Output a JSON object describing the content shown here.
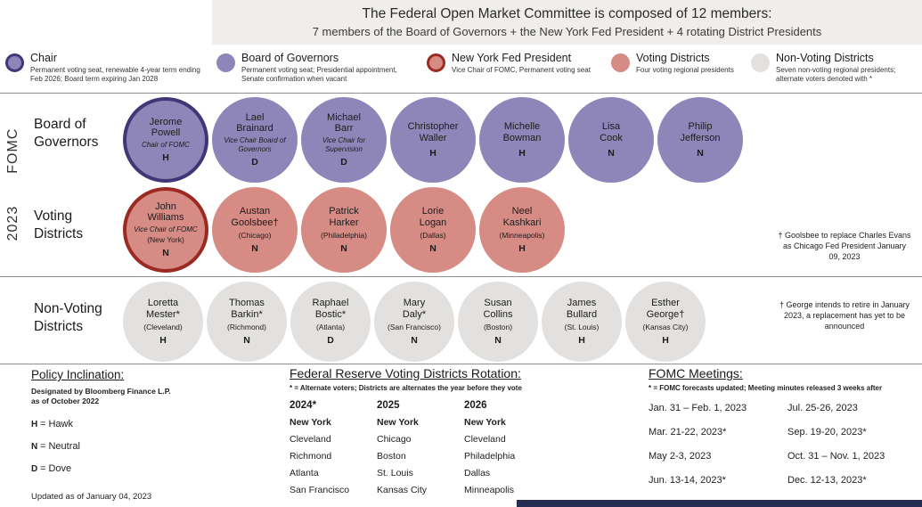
{
  "header": {
    "line1": "The Federal Open Market Committee is composed of 12 members:",
    "line2": "7 members of the Board of Governors + the New York Fed President + 4 rotating District Presidents"
  },
  "legend": [
    {
      "label": "Chair",
      "desc": "Permanent voting seat, renewable 4-year term ending Feb 2026; Board term expiring Jan 2028"
    },
    {
      "label": "Board of Governors",
      "desc": "Permanent voting seat; Presidential appointment, Senate confirmation when vacant"
    },
    {
      "label": "New York Fed President",
      "desc": "Vice Chair of FOMC, Permanent voting seat"
    },
    {
      "label": "Voting Districts",
      "desc": "Four voting regional presidents"
    },
    {
      "label": "Non-Voting Districts",
      "desc": "Seven non-voting regional presidents; alternate voters denoted with *"
    }
  ],
  "side_label": {
    "year": "2023",
    "text": "FOMC"
  },
  "rows": [
    {
      "label": "Board of Governors",
      "members": [
        {
          "name": "Jerome Powell",
          "role": "Chair of FOMC",
          "stance": "H",
          "type": "chair"
        },
        {
          "name": "Lael Brainard",
          "role": "Vice Chair Board of Governors",
          "stance": "D",
          "type": "governor"
        },
        {
          "name": "Michael Barr",
          "role": "Vice Chair for Supervision",
          "stance": "D",
          "type": "governor"
        },
        {
          "name": "Christopher Waller",
          "stance": "H",
          "type": "governor"
        },
        {
          "name": "Michelle Bowman",
          "stance": "H",
          "type": "governor"
        },
        {
          "name": "Lisa Cook",
          "stance": "N",
          "type": "governor"
        },
        {
          "name": "Philip Jefferson",
          "stance": "N",
          "type": "governor"
        }
      ]
    },
    {
      "label": "Voting Districts",
      "note": "† Goolsbee to replace Charles Evans as Chicago Fed President January 09, 2023",
      "members": [
        {
          "name": "John Williams",
          "role": "Vice Chair of FOMC",
          "district": "(New York)",
          "stance": "N",
          "type": "nyfed"
        },
        {
          "name": "Austan Goolsbee†",
          "district": "(Chicago)",
          "stance": "N",
          "type": "voting"
        },
        {
          "name": "Patrick Harker",
          "district": "(Philadelphia)",
          "stance": "N",
          "type": "voting"
        },
        {
          "name": "Lorie Logan",
          "district": "(Dallas)",
          "stance": "N",
          "type": "voting"
        },
        {
          "name": "Neel Kashkari",
          "district": "(Minneapolis)",
          "stance": "H",
          "type": "voting"
        }
      ]
    },
    {
      "label": "Non-Voting Districts",
      "note": "† George intends to retire in January 2023, a replacement has yet to be announced",
      "members": [
        {
          "name": "Loretta Mester*",
          "district": "(Cleveland)",
          "stance": "H",
          "type": "nonvoting"
        },
        {
          "name": "Thomas Barkin*",
          "district": "(Richmond)",
          "stance": "N",
          "type": "nonvoting"
        },
        {
          "name": "Raphael Bostic*",
          "district": "(Atlanta)",
          "stance": "D",
          "type": "nonvoting"
        },
        {
          "name": "Mary Daly*",
          "district": "(San Francisco)",
          "stance": "N",
          "type": "nonvoting"
        },
        {
          "name": "Susan Collins",
          "district": "(Boston)",
          "stance": "N",
          "type": "nonvoting"
        },
        {
          "name": "James Bullard",
          "district": "(St. Louis)",
          "stance": "H",
          "type": "nonvoting"
        },
        {
          "name": "Esther George†",
          "district": "(Kansas City)",
          "stance": "H",
          "type": "nonvoting"
        }
      ]
    }
  ],
  "policy": {
    "title": "Policy Inclination:",
    "subtitle_line1": "Designated by Bloomberg Finance L.P.",
    "subtitle_line2": "as of October 2022",
    "items": [
      {
        "key": "H",
        "label": "= Hawk"
      },
      {
        "key": "N",
        "label": "= Neutral"
      },
      {
        "key": "D",
        "label": "= Dove"
      }
    ],
    "updated": "Updated as of January 04, 2023"
  },
  "rotation": {
    "title": "Federal Reserve Voting Districts Rotation:",
    "note": "* = Alternate voters; Districts are alternates the year before they vote",
    "columns": [
      {
        "year": "2024*",
        "districts": [
          "New York",
          "Cleveland",
          "Richmond",
          "Atlanta",
          "San Francisco"
        ]
      },
      {
        "year": "2025",
        "districts": [
          "New York",
          "Chicago",
          "Boston",
          "St. Louis",
          "Kansas City"
        ]
      },
      {
        "year": "2026",
        "districts": [
          "New York",
          "Cleveland",
          "Philadelphia",
          "Dallas",
          "Minneapolis"
        ]
      }
    ]
  },
  "meetings": {
    "title": "FOMC Meetings:",
    "note": "* = FOMC forecasts updated; Meeting minutes released 3 weeks after",
    "col1": [
      "Jan. 31 – Feb. 1, 2023",
      "Mar. 21-22, 2023*",
      "May 2-3, 2023",
      "Jun. 13-14, 2023*"
    ],
    "col2": [
      "Jul. 25-26, 2023",
      "Sep. 19-20, 2023*",
      "Oct. 31 – Nov. 1, 2023",
      "Dec. 12-13, 2023*"
    ]
  },
  "colors": {
    "chair_fill": "#8e86b8",
    "chair_border": "#3f3776",
    "governor_fill": "#8e86b8",
    "nyfed_fill": "#d68b84",
    "nyfed_border": "#9c2a23",
    "voting_fill": "#d68b84",
    "nonvoting_fill": "#e2e1df",
    "header_bg": "#f0eeeb",
    "footer_bar": "#242e52"
  }
}
